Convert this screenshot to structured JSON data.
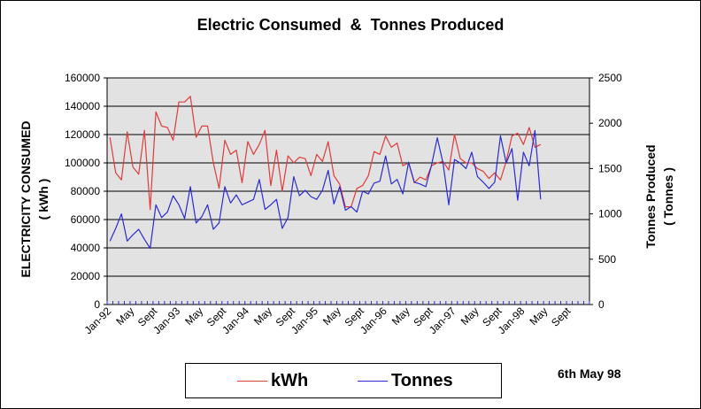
{
  "chart_data": {
    "type": "line",
    "title": "Electric Consumed  &  Tonnes Produced",
    "ylabel_left_line1": "ELECTRICITY CONSUMED",
    "ylabel_left_line2": "( kWh )",
    "ylabel_right_line1": "Tonnes Produced",
    "ylabel_right_line2": "( Tonnes )",
    "ylim_left": [
      0,
      160000
    ],
    "ylim_right": [
      0,
      2500
    ],
    "yticks_left": [
      "0",
      "20000",
      "40000",
      "60000",
      "80000",
      "100000",
      "120000",
      "140000",
      "160000"
    ],
    "yticks_right": [
      "0",
      "500",
      "1000",
      "1500",
      "2000",
      "2500"
    ],
    "x_period": "monthly, Jan-92 to Dec-98",
    "x_tick_labels": [
      "Jan-92",
      "May",
      "Sept",
      "Jan-93",
      "May",
      "Sept",
      "Jan-94",
      "May",
      "Sept",
      "Jan-95",
      "May",
      "Sept",
      "Jan-96",
      "May",
      "Sept",
      "Jan-97",
      "May",
      "Sept",
      "Jan-98",
      "May",
      "Sept"
    ],
    "grid": "horizontal",
    "legend_position": "bottom",
    "series": [
      {
        "name": "kWh",
        "axis": "left",
        "color": "#e03c3c",
        "values": [
          118000,
          93000,
          88000,
          122000,
          97000,
          92000,
          123000,
          67000,
          136000,
          126000,
          125000,
          116000,
          143000,
          143000,
          147000,
          118000,
          126000,
          126000,
          100000,
          82000,
          116000,
          106000,
          109000,
          86000,
          115000,
          106000,
          113000,
          123000,
          84000,
          109000,
          80000,
          105000,
          100000,
          104000,
          103000,
          91000,
          106000,
          101000,
          115000,
          91000,
          85000,
          69000,
          69000,
          82000,
          84000,
          91000,
          108000,
          106000,
          119000,
          111000,
          114000,
          98000,
          100000,
          86000,
          90000,
          88000,
          98000,
          100000,
          101000,
          95000,
          120000,
          103000,
          100000,
          100000,
          96000,
          94000,
          89000,
          93000,
          88000,
          101000,
          119000,
          121000,
          113000,
          125000,
          111000,
          113000
        ]
      },
      {
        "name": "Tonnes",
        "axis": "right",
        "color": "#2b2bd4",
        "values": [
          700,
          840,
          1000,
          700,
          770,
          830,
          720,
          620,
          1100,
          960,
          1020,
          1200,
          1100,
          950,
          1300,
          900,
          970,
          1100,
          830,
          900,
          1300,
          1120,
          1210,
          1100,
          1130,
          1160,
          1380,
          1050,
          1100,
          1160,
          840,
          960,
          1410,
          1200,
          1260,
          1190,
          1160,
          1260,
          1480,
          1110,
          1300,
          1040,
          1080,
          1020,
          1250,
          1220,
          1340,
          1360,
          1640,
          1330,
          1380,
          1220,
          1570,
          1350,
          1330,
          1300,
          1540,
          1840,
          1560,
          1100,
          1600,
          1560,
          1500,
          1680,
          1410,
          1350,
          1280,
          1350,
          1860,
          1560,
          1720,
          1150,
          1680,
          1530,
          1920,
          1160
        ]
      }
    ]
  },
  "annotation": "6th May 98"
}
